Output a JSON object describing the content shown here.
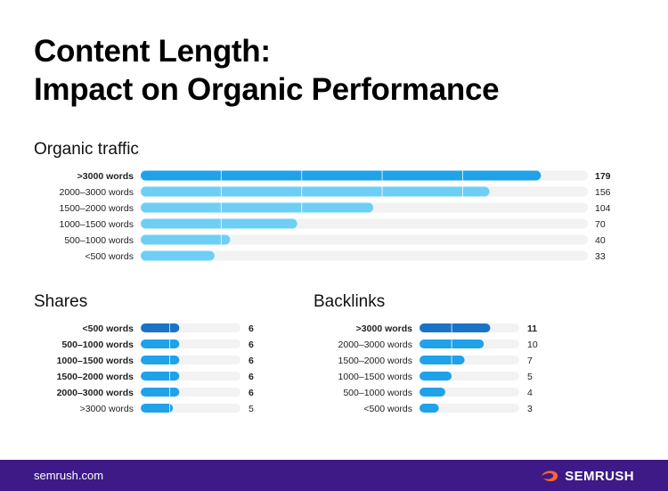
{
  "title_line1": "Content Length:",
  "title_line2": "Impact on Organic Performance",
  "footer": {
    "url": "semrush.com",
    "brand": "SEMRUSH",
    "logo_icon": "semrush-flame-icon"
  },
  "colors": {
    "dark_blue": "#1a73c7",
    "medium_blue": "#1fa2ea",
    "light_blue": "#6ecff6",
    "track": "#f2f2f2",
    "footer_bg": "#3d1a87",
    "brand_orange": "#ff642d"
  },
  "chart_data": [
    {
      "type": "bar",
      "orientation": "horizontal",
      "title": "Organic traffic",
      "categories": [
        ">3000 words",
        "2000–3000 words",
        "1500–2000 words",
        "1000–1500 words",
        "500–1000 words",
        "<500 words"
      ],
      "values": [
        179,
        156,
        104,
        70,
        40,
        33
      ],
      "highlight": [
        true,
        false,
        false,
        false,
        false,
        false
      ],
      "xlim": [
        0,
        200
      ]
    },
    {
      "type": "bar",
      "orientation": "horizontal",
      "title": "Shares",
      "categories": [
        "<500 words",
        "500–1000 words",
        "1000–1500 words",
        "1500–2000 words",
        "2000–3000 words",
        ">3000 words"
      ],
      "values": [
        6,
        6,
        6,
        6,
        6,
        5
      ],
      "highlight": [
        true,
        true,
        true,
        true,
        true,
        false
      ],
      "xlim": [
        0,
        15.5
      ]
    },
    {
      "type": "bar",
      "orientation": "horizontal",
      "title": "Backlinks",
      "categories": [
        ">3000 words",
        "2000–3000 words",
        "1500–2000 words",
        "1000–1500 words",
        "500–1000 words",
        "<500 words"
      ],
      "values": [
        11,
        10,
        7,
        5,
        4,
        3
      ],
      "highlight": [
        true,
        false,
        false,
        false,
        false,
        false
      ],
      "xlim": [
        0,
        15.5
      ]
    }
  ]
}
